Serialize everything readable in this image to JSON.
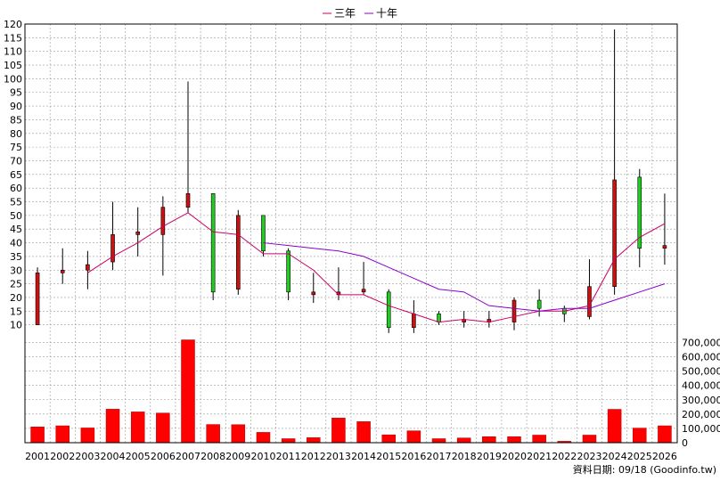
{
  "legend": [
    {
      "label": "三年",
      "color": "#cc0066"
    },
    {
      "label": "十年",
      "color": "#8800cc"
    }
  ],
  "footer": "資料日期: 09/18  (Goodinfo.tw)",
  "colors": {
    "up": "#cc1111",
    "down": "#22cc22",
    "volume": "#ff0000",
    "grid": "#999999"
  },
  "chart_data": [
    {
      "type": "candlestick",
      "x": [
        "2001",
        "2002",
        "2003",
        "2004",
        "2005",
        "2006",
        "2007",
        "2008",
        "2009",
        "2010",
        "2011",
        "2012",
        "2013",
        "2014",
        "2015",
        "2016",
        "2017",
        "2018",
        "2019",
        "2020",
        "2021",
        "2022",
        "2023",
        "2024",
        "2025",
        "2026"
      ],
      "ylim": [
        5,
        120
      ],
      "yticks": [
        10,
        15,
        20,
        25,
        30,
        35,
        40,
        45,
        50,
        55,
        60,
        65,
        70,
        75,
        80,
        85,
        90,
        95,
        100,
        105,
        110,
        115,
        120
      ],
      "grid": true,
      "candles": [
        {
          "open": 10,
          "close": 29,
          "high": 31,
          "low": 10
        },
        {
          "open": 29,
          "close": 30,
          "high": 38,
          "low": 25
        },
        {
          "open": 30,
          "close": 32,
          "high": 37,
          "low": 23
        },
        {
          "open": 33,
          "close": 43,
          "high": 55,
          "low": 30
        },
        {
          "open": 43,
          "close": 44,
          "high": 53,
          "low": 35
        },
        {
          "open": 43,
          "close": 53,
          "high": 57,
          "low": 28
        },
        {
          "open": 53,
          "close": 58,
          "high": 99,
          "low": 51
        },
        {
          "open": 58,
          "close": 22,
          "high": 58,
          "low": 19
        },
        {
          "open": 23,
          "close": 50,
          "high": 52,
          "low": 21
        },
        {
          "open": 50,
          "close": 37,
          "high": 50,
          "low": 35
        },
        {
          "open": 37,
          "close": 22,
          "high": 38,
          "low": 19
        },
        {
          "open": 21,
          "close": 22,
          "high": 29,
          "low": 18
        },
        {
          "open": 21,
          "close": 22,
          "high": 31,
          "low": 19
        },
        {
          "open": 22,
          "close": 23,
          "high": 33,
          "low": 21
        },
        {
          "open": 22,
          "close": 9,
          "high": 23,
          "low": 7
        },
        {
          "open": 9,
          "close": 14,
          "high": 19,
          "low": 7
        },
        {
          "open": 14,
          "close": 11,
          "high": 15,
          "low": 10
        },
        {
          "open": 11,
          "close": 12,
          "high": 15,
          "low": 9
        },
        {
          "open": 11,
          "close": 12,
          "high": 15,
          "low": 9
        },
        {
          "open": 11,
          "close": 19,
          "high": 20,
          "low": 8
        },
        {
          "open": 19,
          "close": 16,
          "high": 23,
          "low": 13
        },
        {
          "open": 16,
          "close": 14,
          "high": 17,
          "low": 11
        },
        {
          "open": 13,
          "close": 24,
          "high": 34,
          "low": 12
        },
        {
          "open": 24,
          "close": 63,
          "high": 118,
          "low": 21
        },
        {
          "open": 64,
          "close": 38,
          "high": 67,
          "low": 31
        },
        {
          "open": 38,
          "close": 39,
          "high": 58,
          "low": 32
        }
      ],
      "series": [
        {
          "name": "三年",
          "values": [
            null,
            null,
            29,
            35,
            40,
            46,
            51,
            44,
            43,
            36,
            36,
            30,
            21,
            21,
            17,
            14,
            11,
            12,
            11,
            13,
            15,
            15,
            17,
            34,
            42,
            47
          ]
        },
        {
          "name": "十年",
          "values": [
            null,
            null,
            null,
            null,
            null,
            null,
            null,
            null,
            null,
            40,
            39,
            38,
            37,
            35,
            31,
            27,
            23,
            22,
            17,
            16,
            15,
            16,
            16,
            19,
            22,
            25
          ]
        }
      ]
    },
    {
      "type": "bar",
      "x": [
        "2001",
        "2002",
        "2003",
        "2004",
        "2005",
        "2006",
        "2007",
        "2008",
        "2009",
        "2010",
        "2011",
        "2012",
        "2013",
        "2014",
        "2015",
        "2016",
        "2017",
        "2018",
        "2019",
        "2020",
        "2021",
        "2022",
        "2023",
        "2024",
        "2025",
        "2026"
      ],
      "values": [
        110000,
        118000,
        103000,
        234000,
        215000,
        207000,
        718000,
        127000,
        126000,
        72000,
        28000,
        35000,
        172000,
        147000,
        55000,
        83000,
        28000,
        33000,
        42000,
        42000,
        53000,
        10000,
        53000,
        233000,
        102000,
        118000
      ],
      "ylim": [
        0,
        740000
      ],
      "yticks": [
        "0",
        "100,000",
        "200,000",
        "300,000",
        "400,000",
        "500,000",
        "600,000",
        "700,000"
      ],
      "grid": true
    }
  ]
}
